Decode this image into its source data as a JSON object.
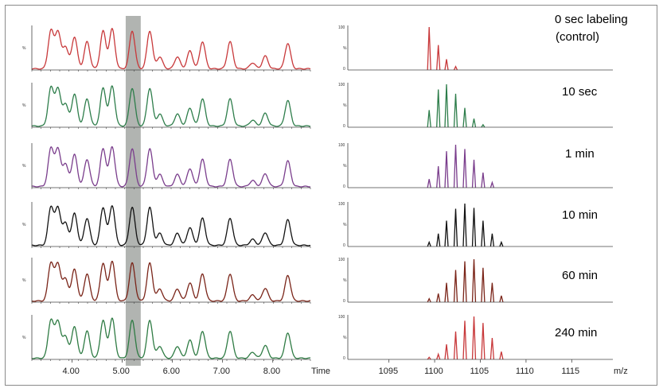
{
  "chart_data": [
    {
      "type": "line",
      "panel": "chromatograms",
      "xlabel": "Time",
      "xlim": [
        3.2,
        8.75
      ],
      "x_ticks": [
        4.0,
        5.0,
        6.0,
        7.0,
        8.0
      ],
      "x_tick_labels": [
        "4.00",
        "5.00",
        "6.00",
        "7.00",
        "8.00"
      ],
      "y_tick_label": "%",
      "highlight_range": [
        5.07,
        5.37
      ],
      "peaks": [
        {
          "center": 3.58,
          "height": 0.95
        },
        {
          "center": 3.72,
          "height": 0.92
        },
        {
          "center": 3.87,
          "height": 0.55
        },
        {
          "center": 4.05,
          "height": 0.8
        },
        {
          "center": 4.3,
          "height": 0.68
        },
        {
          "center": 4.62,
          "height": 0.95
        },
        {
          "center": 4.8,
          "height": 1.0
        },
        {
          "center": 5.2,
          "height": 0.95
        },
        {
          "center": 5.55,
          "height": 0.95
        },
        {
          "center": 5.75,
          "height": 0.3
        },
        {
          "center": 6.1,
          "height": 0.3
        },
        {
          "center": 6.35,
          "height": 0.45
        },
        {
          "center": 6.6,
          "height": 0.68
        },
        {
          "center": 7.15,
          "height": 0.68
        },
        {
          "center": 7.6,
          "height": 0.15
        },
        {
          "center": 7.85,
          "height": 0.32
        },
        {
          "center": 8.3,
          "height": 0.64
        }
      ],
      "series": [
        {
          "name": "0 sec labeling (control)",
          "color": "#c8383a"
        },
        {
          "name": "10 sec",
          "color": "#2d7d4a"
        },
        {
          "name": "1 min",
          "color": "#7a3d8c"
        },
        {
          "name": "10 min",
          "color": "#111111"
        },
        {
          "name": "60 min",
          "color": "#7a2418"
        },
        {
          "name": "240 min",
          "color": "#2e7b43"
        }
      ]
    },
    {
      "type": "bar",
      "panel": "mass spectra",
      "xlabel": "m/z",
      "xlim": [
        1090.5,
        1119.5
      ],
      "x_ticks": [
        1095,
        1100,
        1105,
        1110,
        1115
      ],
      "x_tick_labels": [
        "1095",
        "1100",
        "1105",
        "1110",
        "1115"
      ],
      "y_tick_labels": [
        "100",
        "%",
        "0"
      ],
      "series": [
        {
          "name": "0 sec labeling (control)",
          "color": "#c8383a",
          "x": [
            1099.4,
            1100.4,
            1101.3,
            1102.3
          ],
          "values": [
            100,
            58,
            25,
            8
          ]
        },
        {
          "name": "10 sec",
          "color": "#2d7d4a",
          "x": [
            1099.4,
            1100.4,
            1101.3,
            1102.3,
            1103.3,
            1104.3,
            1105.3
          ],
          "values": [
            40,
            88,
            100,
            78,
            45,
            20,
            6
          ]
        },
        {
          "name": "1 min",
          "color": "#7a3d8c",
          "x": [
            1099.4,
            1100.4,
            1101.3,
            1102.3,
            1103.3,
            1104.3,
            1105.3,
            1106.3
          ],
          "values": [
            20,
            50,
            85,
            100,
            90,
            65,
            35,
            12
          ]
        },
        {
          "name": "10 min",
          "color": "#111111",
          "x": [
            1099.4,
            1100.4,
            1101.3,
            1102.3,
            1103.3,
            1104.3,
            1105.3,
            1106.3,
            1107.3
          ],
          "values": [
            10,
            30,
            60,
            88,
            100,
            90,
            60,
            30,
            10
          ]
        },
        {
          "name": "60 min",
          "color": "#7a2418",
          "x": [
            1099.4,
            1100.4,
            1101.3,
            1102.3,
            1103.3,
            1104.3,
            1105.3,
            1106.3,
            1107.3
          ],
          "values": [
            8,
            20,
            45,
            75,
            95,
            100,
            80,
            45,
            15
          ]
        },
        {
          "name": "240 min",
          "color": "#c8383a",
          "x": [
            1099.4,
            1100.4,
            1101.3,
            1102.3,
            1103.3,
            1104.3,
            1105.3,
            1106.3,
            1107.3
          ],
          "values": [
            5,
            12,
            35,
            65,
            90,
            100,
            85,
            50,
            18
          ]
        }
      ]
    }
  ],
  "labels": {
    "row0_line1": "0 sec labeling",
    "row0_line2": "(control)",
    "row1": "10 sec",
    "row2": "1 min",
    "row3": "10 min",
    "row4": "60 min",
    "row5": "240 min",
    "time_axis": "Time",
    "mz_axis": "m/z"
  }
}
